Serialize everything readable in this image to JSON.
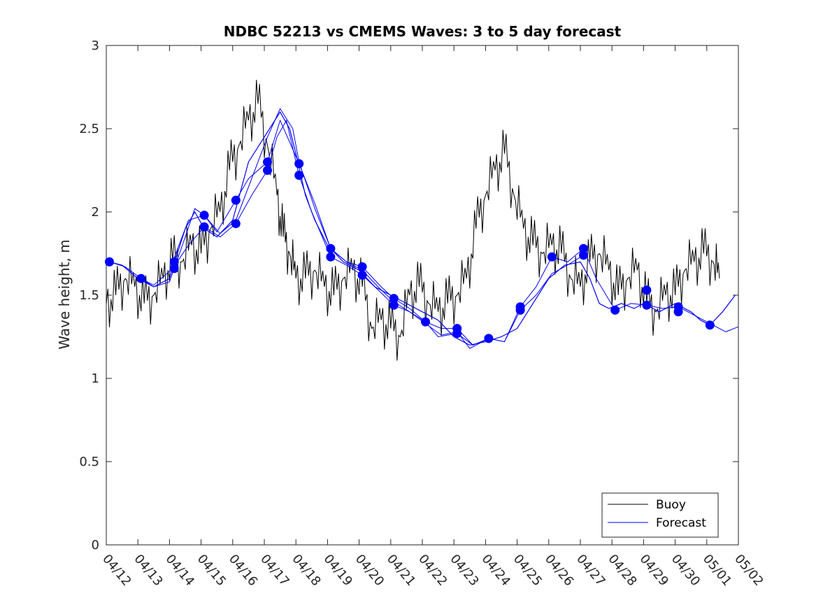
{
  "chart_data": {
    "type": "line",
    "title": "NDBC 52213 vs CMEMS Waves: 3 to 5 day forecast",
    "xlabel": "",
    "ylabel": "Wave height, m",
    "ylim": [
      0,
      3
    ],
    "yticks": [
      "0",
      "0.5",
      "1",
      "1.5",
      "2",
      "2.5",
      "3"
    ],
    "xticks": [
      "04/12",
      "04/13",
      "04/14",
      "04/15",
      "04/16",
      "04/17",
      "04/18",
      "04/19",
      "04/20",
      "04/21",
      "04/22",
      "04/23",
      "04/24",
      "04/25",
      "04/26",
      "04/27",
      "04/28",
      "04/29",
      "04/30",
      "05/01",
      "05/02"
    ],
    "grid": false,
    "legend_position": "bottom-right",
    "colors": {
      "buoy": "#000000",
      "forecast": "#0000ff",
      "axes": "#262626"
    },
    "series": [
      {
        "name": "Buoy",
        "x": [
          0.0,
          0.3,
          0.6,
          0.9,
          1.2,
          1.5,
          1.8,
          2.1,
          2.4,
          2.7,
          3.0,
          3.3,
          3.6,
          3.9,
          4.2,
          4.5,
          4.8,
          5.1,
          5.4,
          5.6,
          5.8,
          6.0,
          6.3,
          6.6,
          6.9,
          7.2,
          7.5,
          7.8,
          8.1,
          8.4,
          8.7,
          9.0,
          9.3,
          9.6,
          9.9,
          10.2,
          10.5,
          10.8,
          11.1,
          11.4,
          11.7,
          12.0,
          12.3,
          12.6,
          12.9,
          13.2,
          13.5,
          13.8,
          14.1,
          14.4,
          14.7,
          15.0,
          15.3,
          15.6,
          15.9,
          16.2,
          16.5,
          16.8,
          17.1,
          17.4,
          17.7,
          18.0,
          18.3,
          18.6,
          18.9,
          19.2,
          19.4
        ],
        "values": [
          1.45,
          1.5,
          1.6,
          1.55,
          1.45,
          1.5,
          1.6,
          1.7,
          1.7,
          1.8,
          1.75,
          1.9,
          2.0,
          2.25,
          2.4,
          2.55,
          2.65,
          2.4,
          2.1,
          1.85,
          1.75,
          1.6,
          1.6,
          1.65,
          1.55,
          1.5,
          1.6,
          1.65,
          1.55,
          1.3,
          1.35,
          1.3,
          1.25,
          1.5,
          1.55,
          1.45,
          1.4,
          1.45,
          1.5,
          1.6,
          1.9,
          2.1,
          2.25,
          2.35,
          2.1,
          1.9,
          1.8,
          1.75,
          1.8,
          1.75,
          1.6,
          1.55,
          1.7,
          1.75,
          1.65,
          1.5,
          1.6,
          1.65,
          1.45,
          1.4,
          1.5,
          1.5,
          1.65,
          1.7,
          1.75,
          1.7,
          1.6
        ]
      },
      {
        "name": "Forecast",
        "x": [
          0.1,
          0.5,
          1.0,
          1.5,
          2.0,
          2.5,
          2.8,
          3.1,
          3.5,
          4.0,
          4.5,
          5.0,
          5.5,
          5.8,
          6.0,
          6.3,
          6.6,
          7.0,
          7.5,
          8.0,
          8.5,
          9.0,
          9.5,
          10.0,
          10.5,
          11.0,
          11.5,
          12.0,
          12.5,
          13.0,
          13.5,
          14.0,
          14.5,
          15.0,
          15.3,
          15.6,
          15.9,
          16.3,
          16.7,
          17.0,
          17.5,
          18.0,
          18.5,
          18.8,
          19.1,
          19.5,
          19.9
        ],
        "values": [
          1.7,
          1.68,
          1.6,
          1.55,
          1.6,
          1.9,
          2.0,
          1.9,
          1.85,
          1.95,
          2.3,
          2.45,
          2.6,
          2.5,
          2.35,
          2.1,
          1.95,
          1.8,
          1.7,
          1.65,
          1.55,
          1.5,
          1.45,
          1.4,
          1.35,
          1.25,
          1.2,
          1.22,
          1.25,
          1.3,
          1.45,
          1.6,
          1.68,
          1.7,
          1.6,
          1.45,
          1.42,
          1.45,
          1.42,
          1.45,
          1.4,
          1.45,
          1.4,
          1.35,
          1.32,
          1.4,
          1.5
        ]
      }
    ],
    "forecast_markers": {
      "x": [
        0.1,
        1.1,
        2.15,
        2.15,
        3.1,
        3.1,
        4.1,
        4.1,
        5.1,
        5.1,
        6.1,
        6.1,
        7.1,
        7.1,
        8.1,
        8.1,
        9.1,
        9.1,
        10.1,
        11.1,
        11.1,
        12.1,
        13.1,
        13.1,
        14.1,
        15.1,
        15.1,
        16.1,
        17.1,
        17.1,
        18.1,
        18.1,
        19.1
      ],
      "values": [
        1.7,
        1.6,
        1.7,
        1.66,
        1.98,
        1.91,
        2.07,
        1.93,
        2.3,
        2.25,
        2.29,
        2.22,
        1.78,
        1.73,
        1.67,
        1.62,
        1.48,
        1.44,
        1.34,
        1.3,
        1.27,
        1.24,
        1.43,
        1.41,
        1.73,
        1.78,
        1.74,
        1.41,
        1.53,
        1.44,
        1.43,
        1.4,
        1.32
      ]
    },
    "forecast_segments": [
      {
        "x": [
          0.1,
          0.6,
          1.1,
          1.5,
          2.0,
          2.5,
          2.8,
          3.1,
          3.6,
          4.1,
          4.6,
          5.1,
          5.5,
          5.9,
          6.1,
          6.6,
          7.1,
          7.6,
          8.1,
          8.7,
          9.1,
          9.6,
          10.1,
          10.6,
          11.1,
          11.6,
          12.1
        ],
        "values": [
          1.7,
          1.67,
          1.6,
          1.55,
          1.58,
          1.85,
          2.02,
          1.98,
          1.87,
          1.95,
          2.2,
          2.45,
          2.62,
          2.5,
          2.3,
          2.02,
          1.78,
          1.7,
          1.67,
          1.55,
          1.48,
          1.42,
          1.34,
          1.3,
          1.3,
          1.2,
          1.24
        ]
      },
      {
        "x": [
          1.1,
          1.5,
          2.1,
          2.6,
          3.1,
          3.6,
          4.1,
          4.6,
          5.1,
          5.4,
          5.7,
          6.1,
          6.5,
          7.1,
          7.6,
          8.1,
          8.5,
          9.1,
          9.6,
          10.1,
          10.5,
          11.1,
          11.6,
          12.1,
          12.6,
          13.1,
          13.6,
          14.1,
          14.5,
          15.1
        ],
        "values": [
          1.6,
          1.56,
          1.66,
          1.8,
          1.91,
          1.85,
          1.93,
          2.1,
          2.25,
          2.45,
          2.55,
          2.22,
          2.0,
          1.73,
          1.68,
          1.62,
          1.55,
          1.44,
          1.4,
          1.34,
          1.25,
          1.27,
          1.2,
          1.24,
          1.22,
          1.41,
          1.5,
          1.63,
          1.67,
          1.74
        ]
      },
      {
        "x": [
          2.1,
          2.6,
          3.1,
          3.5,
          4.1,
          4.5,
          5.1,
          5.5,
          6.1,
          6.6,
          7.1,
          7.6,
          8.1,
          8.6,
          9.1,
          9.6,
          10.1,
          10.6,
          11.1,
          11.5,
          12.1,
          12.6,
          13.1,
          13.6,
          14.1,
          14.6,
          15.1,
          15.5,
          16.1,
          16.6,
          17.1,
          17.6,
          18.1,
          18.6,
          19.1,
          19.6,
          20.0
        ],
        "values": [
          1.7,
          1.95,
          1.98,
          1.88,
          2.07,
          2.2,
          2.3,
          2.55,
          2.29,
          2.05,
          1.78,
          1.7,
          1.65,
          1.55,
          1.46,
          1.4,
          1.33,
          1.26,
          1.28,
          1.18,
          1.24,
          1.22,
          1.43,
          1.55,
          1.73,
          1.7,
          1.78,
          1.6,
          1.41,
          1.45,
          1.44,
          1.42,
          1.43,
          1.38,
          1.33,
          1.28,
          1.31
        ]
      }
    ]
  },
  "legend": {
    "buoy_label": "Buoy",
    "forecast_label": "Forecast"
  }
}
